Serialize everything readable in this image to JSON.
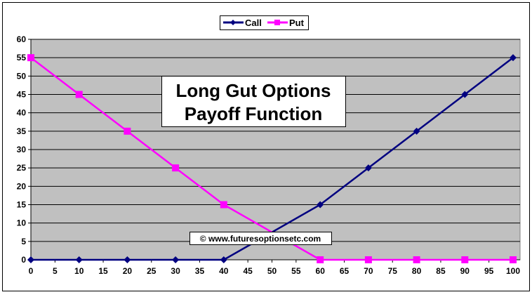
{
  "chart_data": {
    "type": "line",
    "title": "Long Gut Options\nPayoff Function",
    "title_lines": [
      "Long Gut Options",
      "Payoff Function"
    ],
    "watermark": "© www.futuresoptionsetc.com",
    "xlabel": "",
    "ylabel": "",
    "xlim": [
      0,
      100
    ],
    "ylim": [
      0,
      60
    ],
    "x_ticks": [
      "0",
      "5",
      "10",
      "15",
      "20",
      "25",
      "30",
      "35",
      "40",
      "45",
      "50",
      "55",
      "60",
      "65",
      "70",
      "75",
      "80",
      "85",
      "90",
      "95",
      "100"
    ],
    "y_ticks": [
      "0",
      "5",
      "10",
      "15",
      "20",
      "25",
      "30",
      "35",
      "40",
      "45",
      "50",
      "55",
      "60"
    ],
    "grid": true,
    "legend": "top-center",
    "plot_background": "#c0c0c0",
    "series": [
      {
        "name": "Call",
        "color": "#000080",
        "marker": "diamond",
        "x": [
          0,
          10,
          20,
          30,
          40,
          60,
          70,
          80,
          90,
          100
        ],
        "y": [
          0,
          0,
          0,
          0,
          0,
          15,
          25,
          35,
          45,
          55
        ]
      },
      {
        "name": "Put",
        "color": "#ff00ff",
        "marker": "square",
        "x": [
          0,
          10,
          20,
          30,
          40,
          60,
          70,
          80,
          90,
          100
        ],
        "y": [
          55,
          45,
          35,
          25,
          15,
          0,
          0,
          0,
          0,
          0
        ]
      }
    ]
  }
}
